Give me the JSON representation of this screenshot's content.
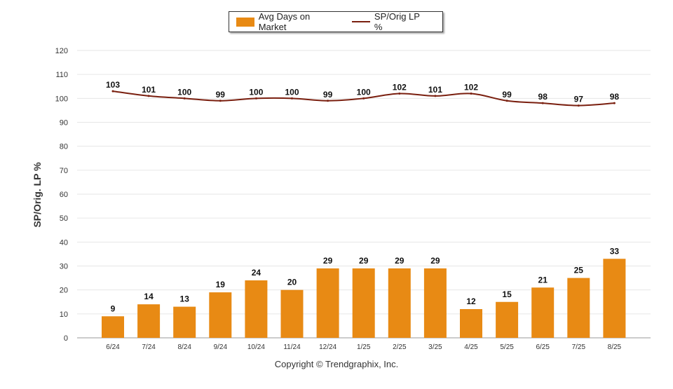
{
  "colors": {
    "bar": "#E88A14",
    "line": "#7A1F0F",
    "grid": "#E6E6E6",
    "axis": "#999999"
  },
  "legend": {
    "bar_label": "Avg Days on Market",
    "line_label": "SP/Orig LP %"
  },
  "footer": {
    "copyright": "Copyright © Trendgraphix, Inc."
  },
  "chart_data": {
    "type": "bar",
    "categories": [
      "6/24",
      "7/24",
      "8/24",
      "9/24",
      "10/24",
      "11/24",
      "12/24",
      "1/25",
      "2/25",
      "3/25",
      "4/25",
      "5/25",
      "6/25",
      "7/25",
      "8/25"
    ],
    "series": [
      {
        "name": "Avg Days on Market",
        "type": "bar",
        "values": [
          9,
          14,
          13,
          19,
          24,
          20,
          29,
          29,
          29,
          29,
          12,
          15,
          21,
          25,
          33
        ]
      },
      {
        "name": "SP/Orig LP %",
        "type": "line",
        "values": [
          103,
          101,
          100,
          99,
          100,
          100,
          99,
          100,
          102,
          101,
          102,
          99,
          98,
          97,
          98
        ]
      }
    ],
    "ylabel": "SP/Orig. LP %",
    "ylim": [
      0,
      120
    ],
    "yticks": [
      0,
      10,
      20,
      30,
      40,
      50,
      60,
      70,
      80,
      90,
      100,
      110,
      120
    ],
    "grid": true,
    "legend_position": "top"
  }
}
